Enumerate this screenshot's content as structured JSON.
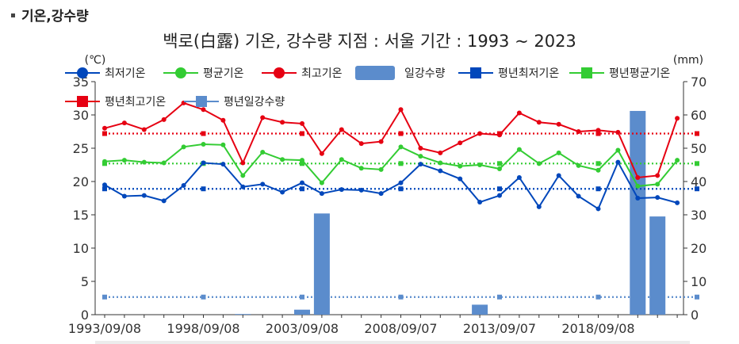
{
  "section": {
    "title": "기온,강수량"
  },
  "chart_data": {
    "type": "line",
    "title": "백로(白露) 기온, 강수량  지점 : 서울 기간 : 1993 ~ 2023",
    "ylabel": "(℃)",
    "y2label": "(mm)",
    "ylim": [
      0,
      35
    ],
    "y2lim": [
      0,
      70
    ],
    "yticks": [
      0,
      5,
      10,
      15,
      20,
      25,
      30,
      35
    ],
    "y2ticks": [
      0,
      10,
      20,
      30,
      40,
      50,
      60,
      70
    ],
    "xtick_labels": [
      {
        "year": 1993,
        "label": "1993/09/08"
      },
      {
        "year": 1998,
        "label": "1998/09/08"
      },
      {
        "year": 2003,
        "label": "2003/09/08"
      },
      {
        "year": 2008,
        "label": "2008/09/07"
      },
      {
        "year": 2013,
        "label": "2013/09/07"
      },
      {
        "year": 2018,
        "label": "2018/09/08"
      }
    ],
    "x": [
      1993,
      1994,
      1995,
      1996,
      1997,
      1998,
      1999,
      2000,
      2001,
      2002,
      2003,
      2004,
      2005,
      2006,
      2007,
      2008,
      2009,
      2010,
      2011,
      2012,
      2013,
      2014,
      2015,
      2016,
      2017,
      2018,
      2019,
      2020,
      2021,
      2022,
      2023
    ],
    "grid": "none",
    "legend": "top",
    "series": [
      {
        "name": "최저기온",
        "kind": "line",
        "axis": "left",
        "color": "#0047bb",
        "values": [
          19.5,
          17.8,
          17.9,
          17.1,
          19.4,
          22.8,
          22.6,
          19.2,
          19.6,
          18.4,
          19.8,
          18.2,
          18.8,
          18.7,
          18.2,
          19.8,
          22.6,
          21.6,
          20.4,
          16.9,
          17.9,
          20.6,
          16.2,
          20.9,
          17.8,
          15.9,
          22.9,
          17.5,
          17.6,
          16.8,
          null
        ]
      },
      {
        "name": "평균기온",
        "kind": "line",
        "axis": "left",
        "color": "#33cc33",
        "values": [
          23.0,
          23.2,
          22.9,
          22.8,
          25.2,
          25.6,
          25.5,
          20.9,
          24.4,
          23.3,
          23.2,
          19.8,
          23.3,
          22.0,
          21.8,
          25.2,
          23.8,
          22.8,
          22.3,
          22.5,
          21.9,
          24.8,
          22.7,
          24.3,
          22.4,
          21.7,
          24.7,
          19.3,
          19.6,
          23.2,
          null
        ]
      },
      {
        "name": "최고기온",
        "kind": "line",
        "axis": "left",
        "color": "#e60012",
        "values": [
          28.0,
          28.8,
          27.8,
          29.3,
          31.8,
          30.8,
          29.2,
          22.8,
          29.6,
          28.9,
          28.7,
          24.2,
          27.8,
          25.7,
          26.0,
          30.8,
          25.0,
          24.3,
          25.8,
          27.2,
          27.0,
          30.3,
          28.9,
          28.6,
          27.5,
          27.7,
          27.4,
          20.6,
          20.9,
          29.5,
          null
        ]
      },
      {
        "name": "일강수량",
        "kind": "bar",
        "axis": "right",
        "color": "#5b8ccc",
        "values": [
          0,
          0,
          0,
          0,
          0,
          0,
          0,
          0.2,
          0,
          0,
          1.5,
          30.4,
          0,
          0,
          0,
          0,
          0,
          0,
          0,
          3.0,
          0,
          0,
          0,
          0,
          0,
          0,
          0,
          61.2,
          29.5,
          0,
          0
        ]
      },
      {
        "name": "평년최저기온",
        "kind": "normal",
        "axis": "left",
        "color": "#0047bb",
        "value": 18.9
      },
      {
        "name": "평년평균기온",
        "kind": "normal",
        "axis": "left",
        "color": "#33cc33",
        "value": 22.7
      },
      {
        "name": "평년최고기온",
        "kind": "normal",
        "axis": "left",
        "color": "#e60012",
        "value": 27.2
      },
      {
        "name": "평년일강수량",
        "kind": "normal",
        "axis": "right",
        "color": "#5b8ccc",
        "value": 5.3
      }
    ]
  }
}
